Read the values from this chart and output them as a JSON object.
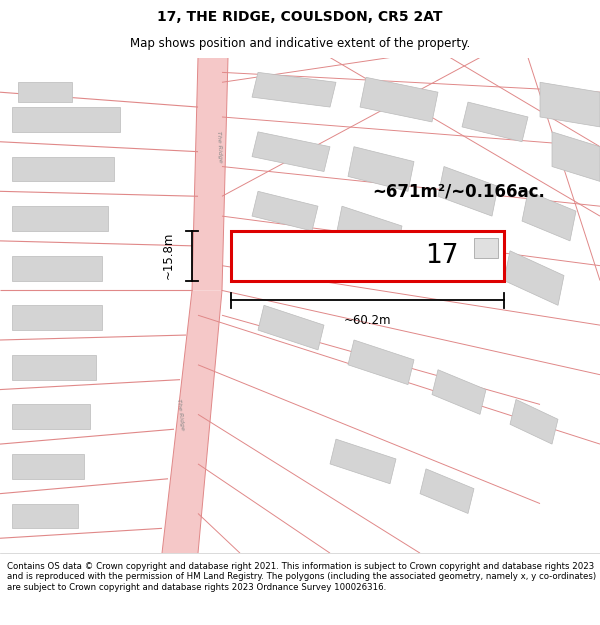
{
  "title": "17, THE RIDGE, COULSDON, CR5 2AT",
  "subtitle": "Map shows position and indicative extent of the property.",
  "area_text": "~671m²/~0.166ac.",
  "width_text": "~60.2m",
  "height_text": "~15.8m",
  "number_text": "17",
  "footer": "Contains OS data © Crown copyright and database right 2021. This information is subject to Crown copyright and database rights 2023 and is reproduced with the permission of HM Land Registry. The polygons (including the associated geometry, namely x, y co-ordinates) are subject to Crown copyright and database rights 2023 Ordnance Survey 100026316.",
  "bg_color": "#ffffff",
  "plot_edge_color": "#dd0000",
  "road_fill": "#f5c8c8",
  "road_edge": "#e08888",
  "building_fill": "#d4d4d4",
  "building_edge": "#bbbbbb",
  "title_fontsize": 10,
  "subtitle_fontsize": 8.5,
  "footer_fontsize": 6.2
}
